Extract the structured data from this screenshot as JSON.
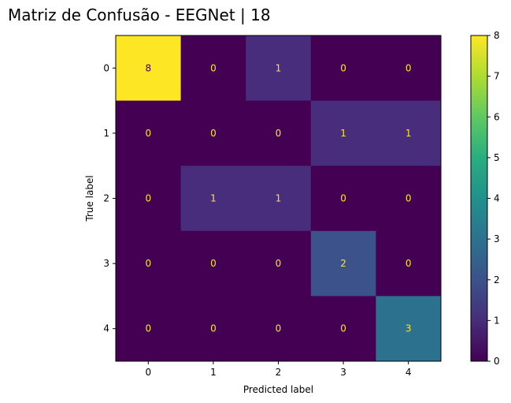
{
  "chart_data": {
    "type": "heatmap",
    "title": "Matriz de Confusão - EEGNet | 18",
    "xlabel": "Predicted label",
    "ylabel": "True label",
    "x_categories": [
      "0",
      "1",
      "2",
      "3",
      "4"
    ],
    "y_categories": [
      "0",
      "1",
      "2",
      "3",
      "4"
    ],
    "values": [
      [
        8,
        0,
        1,
        0,
        0
      ],
      [
        0,
        0,
        0,
        1,
        1
      ],
      [
        0,
        1,
        1,
        0,
        0
      ],
      [
        0,
        0,
        0,
        2,
        0
      ],
      [
        0,
        0,
        0,
        0,
        3
      ]
    ],
    "colorbar": {
      "min": 0,
      "max": 8,
      "ticks": [
        "0",
        "1",
        "2",
        "3",
        "4",
        "5",
        "6",
        "7",
        "8"
      ]
    },
    "colormap": "viridis",
    "text_color_dark_cells": "#fde725",
    "text_color_bright_cells": "#440154"
  }
}
